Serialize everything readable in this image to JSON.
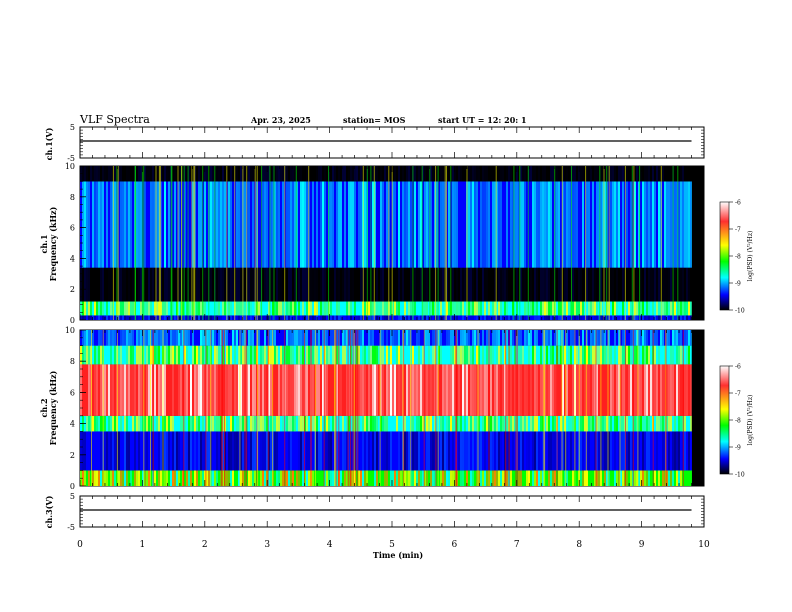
{
  "header": {
    "title": "VLF Spectra",
    "date": "Apr. 23, 2025",
    "station": "station= MOS",
    "start": "start  UT  =    12: 20: 1"
  },
  "colorbar": {
    "label": "log(PSD) (V²/Hz)",
    "ticks": [
      "-6",
      "-7",
      "-8",
      "-9",
      "-10"
    ],
    "colors": [
      "#ffffff",
      "#ff0000",
      "#ffff00",
      "#00ff00",
      "#00ffff",
      "#0000ff",
      "#000000"
    ]
  },
  "chart_data": [
    {
      "type": "line",
      "name": "ch.1 waveform",
      "ylabel": "ch.1(V)",
      "ylim": [
        -5,
        5
      ],
      "yticks": [
        "5",
        "-5"
      ],
      "x": [
        0,
        9.8
      ],
      "y": [
        0,
        0
      ]
    },
    {
      "type": "heatmap",
      "name": "ch.1 spectrogram",
      "ylabel": "ch.1\nFrequency (kHz)",
      "ylim": [
        0,
        10
      ],
      "yticks": [
        "0",
        "2",
        "4",
        "6",
        "8",
        "10"
      ],
      "xlim": [
        0,
        10
      ],
      "data_extent_min": 9.8,
      "bands": [
        {
          "f_from": 0.0,
          "f_to": 0.3,
          "level": "low"
        },
        {
          "f_from": 0.3,
          "f_to": 1.2,
          "level": "medium"
        },
        {
          "f_from": 1.2,
          "f_to": 3.4,
          "level": "floor"
        },
        {
          "f_from": 3.4,
          "f_to": 9.0,
          "level": "medium-low"
        },
        {
          "f_from": 9.0,
          "f_to": 10.0,
          "level": "floor"
        }
      ]
    },
    {
      "type": "heatmap",
      "name": "ch.2 spectrogram",
      "ylabel": "ch.2\nFrequency (kHz)",
      "ylim": [
        0,
        10
      ],
      "yticks": [
        "0",
        "2",
        "4",
        "6",
        "8",
        "10"
      ],
      "xlim": [
        0,
        10
      ],
      "data_extent_min": 9.8,
      "bands": [
        {
          "f_from": 0.0,
          "f_to": 1.0,
          "level": "medium-high"
        },
        {
          "f_from": 1.0,
          "f_to": 3.5,
          "level": "low"
        },
        {
          "f_from": 3.5,
          "f_to": 4.5,
          "level": "medium"
        },
        {
          "f_from": 4.5,
          "f_to": 7.8,
          "level": "high"
        },
        {
          "f_from": 7.8,
          "f_to": 9.0,
          "level": "medium"
        },
        {
          "f_from": 9.0,
          "f_to": 10.0,
          "level": "medium-low"
        }
      ]
    },
    {
      "type": "line",
      "name": "ch.3 waveform",
      "ylabel": "ch.3(V)",
      "ylim": [
        -5,
        5
      ],
      "yticks": [
        "5",
        "-5"
      ],
      "x": [
        0,
        9.8
      ],
      "y": [
        0,
        0
      ]
    }
  ],
  "xaxis": {
    "label": "Time  (min)",
    "ticks": [
      "0",
      "1",
      "2",
      "3",
      "4",
      "5",
      "6",
      "7",
      "8",
      "9",
      "10"
    ]
  }
}
